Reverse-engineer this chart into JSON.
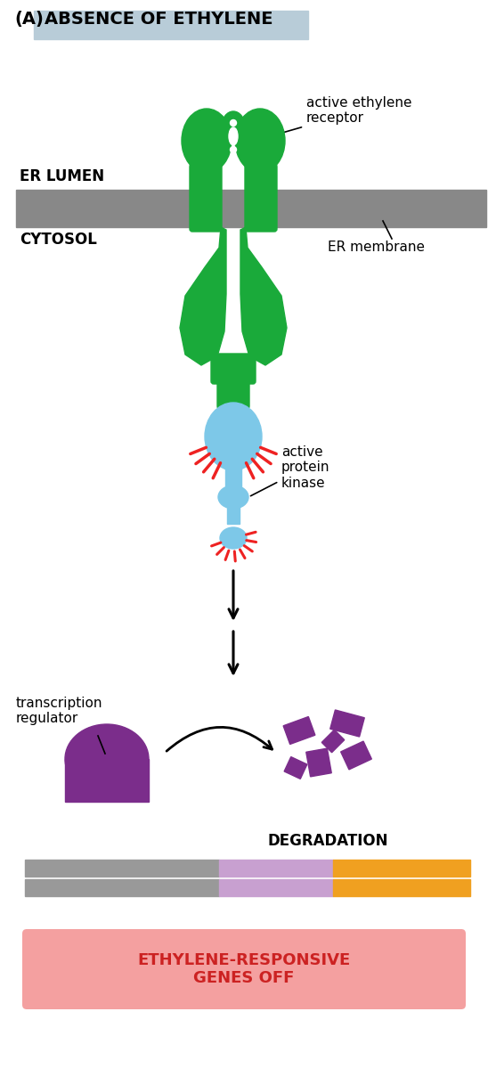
{
  "title_label": "(A)",
  "title_text": "ABSENCE OF ETHYLENE",
  "title_bg": "#b8ccd8",
  "green_color": "#1aaa3a",
  "blue_color": "#7dc8e8",
  "purple_color": "#7b2d8b",
  "gray_color": "#888888",
  "red_color": "#ee2222",
  "er_lumen_label": "ER LUMEN",
  "cytosol_label": "CYTOSOL",
  "er_membrane_label": "ER membrane",
  "receptor_label": "active ethylene\nreceptor",
  "kinase_label": "active\nprotein\nkinase",
  "tr_label": "transcription\nregulator",
  "degradation_label": "DEGRADATION",
  "genes_off_label": "ETHYLENE-RESPONSIVE\nGENES OFF",
  "genes_off_bg": "#f4a0a0",
  "genes_off_text_color": "#cc2222",
  "bar_gray": "#999999",
  "bar_purple": "#c8a0d0",
  "bar_orange": "#f0a020"
}
